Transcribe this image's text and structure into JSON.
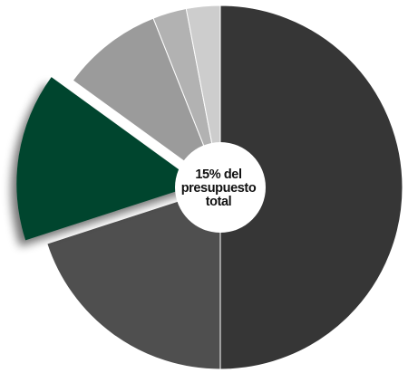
{
  "chart_data": {
    "type": "pie",
    "start": "12 o'clock",
    "direction": "clockwise",
    "legend": "none",
    "slices": [
      {
        "value": 50,
        "color": "#363636"
      },
      {
        "value": 20,
        "color": "#4f4f4f"
      },
      {
        "value": 15,
        "color": "#03452f",
        "exploded": true
      },
      {
        "value": 9,
        "color": "#9b9b9b"
      },
      {
        "value": 3,
        "color": "#b2b2b2"
      },
      {
        "value": 3,
        "color": "#cdcdcd"
      }
    ],
    "center_label": "15% del presupuesto total"
  }
}
